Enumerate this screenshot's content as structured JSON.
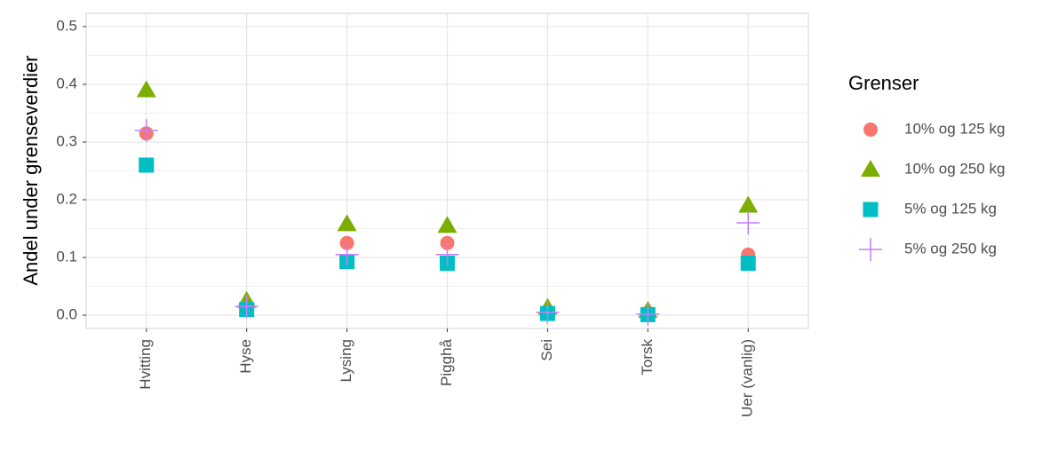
{
  "chart_data": {
    "type": "scatter",
    "y_label": "Andel under grenseverdier",
    "legend_title": "Grenser",
    "legend_position": "right",
    "grid": true,
    "categories": [
      "Hvitting",
      "Hyse",
      "Lysing",
      "Pigghå",
      "Sei",
      "Torsk",
      "Uer (vanlig)"
    ],
    "ylim": [
      -0.023,
      0.523
    ],
    "yticks": [
      {
        "value": 0,
        "label": "0.0"
      },
      0.1,
      0.2,
      0.3,
      0.4,
      0.5
    ],
    "series": [
      {
        "name": "10% og 125 kg",
        "color": "#F8766D",
        "shape": "circle",
        "values": [
          0.315,
          0.012,
          0.125,
          0.125,
          0.005,
          0.002,
          0.105
        ]
      },
      {
        "name": "10% og 250 kg",
        "color": "#7CAE00",
        "shape": "triangle",
        "values": [
          0.39,
          0.025,
          0.158,
          0.155,
          0.013,
          0.008,
          0.19
        ]
      },
      {
        "name": "5% og 125 kg",
        "color": "#00BFC4",
        "shape": "square",
        "values": [
          0.26,
          0.01,
          0.093,
          0.09,
          0.003,
          0.001,
          0.09
        ]
      },
      {
        "name": "5% og 250 kg",
        "color": "#C77CFF",
        "shape": "plus",
        "values": [
          0.32,
          0.015,
          0.105,
          0.105,
          0.005,
          0.002,
          0.16
        ]
      }
    ]
  }
}
